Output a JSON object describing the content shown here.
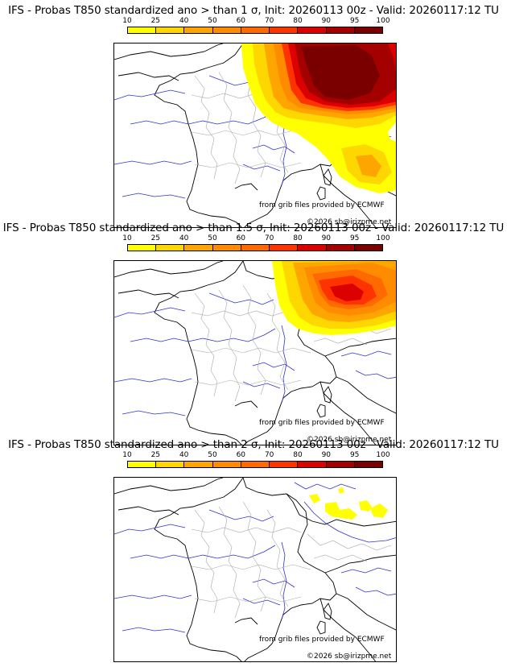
{
  "colors": {
    "scale": [
      "#ffff00",
      "#ffd700",
      "#ffa500",
      "#ff8c00",
      "#ff6a00",
      "#ff3300",
      "#dd0000",
      "#a50000",
      "#7a0000"
    ],
    "border": "#000000",
    "river": "#3030d0",
    "region_border": "#a8a8a8"
  },
  "panels": [
    {
      "title": "IFS - Probas T850  standardized ano > than 1 σ, Init: 20260113 00z - Valid: 20260117:12 TU",
      "scale_labels": [
        "10",
        "25",
        "40",
        "50",
        "60",
        "70",
        "80",
        "90",
        "95",
        "100"
      ],
      "credit": "from grib files provided by ECMWF",
      "copyright": "©2026 sb@irizpme.net"
    },
    {
      "title": "IFS - Probas T850  standardized ano > than 1.5 σ, Init: 20260113 00z - Valid: 20260117:12 TU",
      "scale_labels": [
        "10",
        "25",
        "40",
        "50",
        "60",
        "70",
        "80",
        "90",
        "95",
        "100"
      ],
      "credit": "from grib files provided by ECMWF",
      "copyright": "©2026 sb@irizpme.net"
    },
    {
      "title": "IFS - Probas T850  standardized ano > than 2 σ, Init: 20260113 00z - Valid: 20260117:12 TU",
      "scale_labels": [
        "10",
        "25",
        "40",
        "50",
        "60",
        "70",
        "80",
        "90",
        "95",
        "100"
      ],
      "credit": "from grib files provided by ECMWF",
      "copyright": "©2026 sb@irizpme.net"
    }
  ]
}
